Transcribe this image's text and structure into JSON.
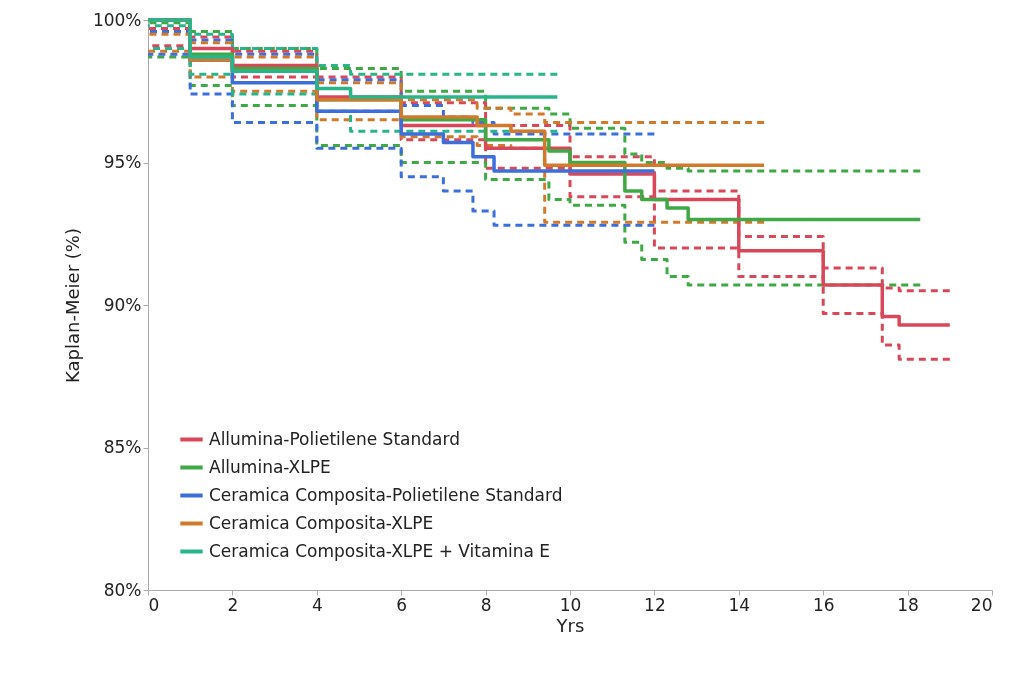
{
  "chart_data": {
    "type": "step",
    "xlabel": "Yrs",
    "ylabel": "Kaplan-Meier (%)",
    "xlim": [
      0,
      20
    ],
    "xticks": [
      0,
      2,
      4,
      6,
      8,
      10,
      12,
      14,
      16,
      18,
      20
    ],
    "ylim": [
      80,
      100
    ],
    "yticks": [
      {
        "value": 80,
        "label": "80%"
      },
      {
        "value": 85,
        "label": "85%"
      },
      {
        "value": 90,
        "label": "90%"
      },
      {
        "value": 95,
        "label": "95%"
      },
      {
        "value": 100,
        "label": "100%"
      }
    ],
    "grid": false,
    "legend": "bottom left",
    "series": [
      {
        "name": "Allumina-Polietilene Standard",
        "color": "#d9485a",
        "line_style": "solid",
        "x": [
          0,
          1,
          2,
          4,
          6,
          8,
          10,
          12,
          14,
          16,
          17.4,
          17.8,
          19
        ],
        "values": [
          100,
          99.0,
          98.4,
          97.3,
          96.3,
          95.5,
          94.6,
          93.7,
          91.9,
          90.7,
          89.6,
          89.3,
          89.3
        ]
      },
      {
        "name": "Allumina-XLPE",
        "color": "#3fa945",
        "line_style": "solid",
        "x": [
          0,
          1,
          2,
          4,
          6,
          8,
          9.5,
          10,
          11.3,
          11.7,
          12.3,
          12.8,
          18.3
        ],
        "values": [
          100,
          98.8,
          98.3,
          97.2,
          96.5,
          95.8,
          95.4,
          95.0,
          94.0,
          93.7,
          93.4,
          93.0,
          93.0
        ]
      },
      {
        "name": "Ceramica Composita-Polietilene Standard",
        "color": "#3d6fdc",
        "line_style": "solid",
        "x": [
          0,
          1,
          2,
          4,
          6,
          7,
          7.7,
          8.2,
          12
        ],
        "values": [
          100,
          98.6,
          97.8,
          96.8,
          96.0,
          95.7,
          95.2,
          94.7,
          94.7
        ]
      },
      {
        "name": "Ceramica Composita-XLPE",
        "color": "#d27a2c",
        "line_style": "solid",
        "x": [
          0,
          1,
          2,
          4,
          6,
          7.8,
          8.6,
          9.4,
          14.6
        ],
        "values": [
          100,
          98.6,
          98.2,
          97.2,
          96.6,
          96.3,
          96.1,
          94.9,
          94.9
        ]
      },
      {
        "name": "Ceramica Composita-XLPE + Vitamina E",
        "color": "#28b58c",
        "line_style": "solid",
        "x": [
          0,
          1,
          2,
          4,
          4.8,
          9.7
        ],
        "values": [
          100,
          98.7,
          98.2,
          97.6,
          97.3,
          97.3
        ]
      },
      {
        "color": "#d9485a",
        "line_style": "dashed",
        "x": [
          0,
          1,
          2,
          4,
          6,
          8,
          10,
          12,
          14,
          16,
          17.4,
          17.8,
          19
        ],
        "values": [
          99.1,
          98.6,
          98.0,
          96.8,
          95.8,
          94.8,
          93.8,
          92.0,
          91.0,
          89.7,
          88.6,
          88.1,
          88.1
        ]
      },
      {
        "color": "#d9485a",
        "line_style": "dashed",
        "x": [
          0,
          1,
          2,
          4,
          6,
          8,
          10,
          12,
          14,
          16,
          17.4,
          17.8,
          19
        ],
        "values": [
          99.7,
          99.4,
          98.9,
          98.0,
          97.1,
          96.3,
          95.2,
          94.0,
          92.4,
          91.3,
          90.6,
          90.5,
          90.5
        ]
      },
      {
        "color": "#3fa945",
        "line_style": "dashed",
        "x": [
          0,
          1,
          2,
          4,
          6,
          8,
          9.5,
          10,
          11.3,
          11.7,
          12.3,
          12.8,
          18.3
        ],
        "values": [
          98.7,
          97.7,
          97.0,
          95.6,
          95.0,
          94.4,
          93.7,
          93.5,
          92.2,
          91.6,
          91.0,
          90.7,
          90.7
        ]
      },
      {
        "color": "#3fa945",
        "line_style": "dashed",
        "x": [
          0,
          1,
          2,
          4,
          6,
          8,
          9.5,
          10,
          11.3,
          11.7,
          12.3,
          12.8,
          18.3
        ],
        "values": [
          99.9,
          99.6,
          99.0,
          98.3,
          97.5,
          96.9,
          96.7,
          96.2,
          95.3,
          95.0,
          94.8,
          94.7,
          94.7
        ]
      },
      {
        "color": "#3d6fdc",
        "line_style": "dashed",
        "x": [
          0,
          1,
          2,
          4,
          6,
          7,
          7.7,
          8.2,
          12
        ],
        "values": [
          98.8,
          97.4,
          96.4,
          95.5,
          94.5,
          94.0,
          93.3,
          92.8,
          92.8
        ]
      },
      {
        "color": "#3d6fdc",
        "line_style": "dashed",
        "x": [
          0,
          1,
          2,
          4,
          6,
          7,
          7.7,
          8.2,
          12
        ],
        "values": [
          99.6,
          99.3,
          98.8,
          97.9,
          97.0,
          96.6,
          96.4,
          96.0,
          96.0
        ]
      },
      {
        "color": "#d27a2c",
        "line_style": "dashed",
        "x": [
          0,
          1,
          2,
          4,
          6,
          7.8,
          8.6,
          9.4,
          14.6
        ],
        "values": [
          98.9,
          98.0,
          97.5,
          96.5,
          95.9,
          95.6,
          95.5,
          92.9,
          92.9
        ]
      },
      {
        "color": "#d27a2c",
        "line_style": "dashed",
        "x": [
          0,
          1,
          2,
          4,
          6,
          7.8,
          8.6,
          9.4,
          14.6
        ],
        "values": [
          99.5,
          99.2,
          98.7,
          97.8,
          97.2,
          96.9,
          96.7,
          96.4,
          96.4
        ]
      },
      {
        "color": "#28b58c",
        "line_style": "dashed",
        "x": [
          0,
          1,
          2,
          4,
          4.8,
          9.7
        ],
        "values": [
          99.0,
          98.1,
          97.4,
          96.8,
          96.1,
          96.1
        ]
      },
      {
        "color": "#28b58c",
        "line_style": "dashed",
        "x": [
          0,
          1,
          2,
          4,
          4.8,
          9.7
        ],
        "values": [
          99.8,
          99.5,
          99.0,
          98.4,
          98.1,
          98.1
        ]
      }
    ]
  }
}
